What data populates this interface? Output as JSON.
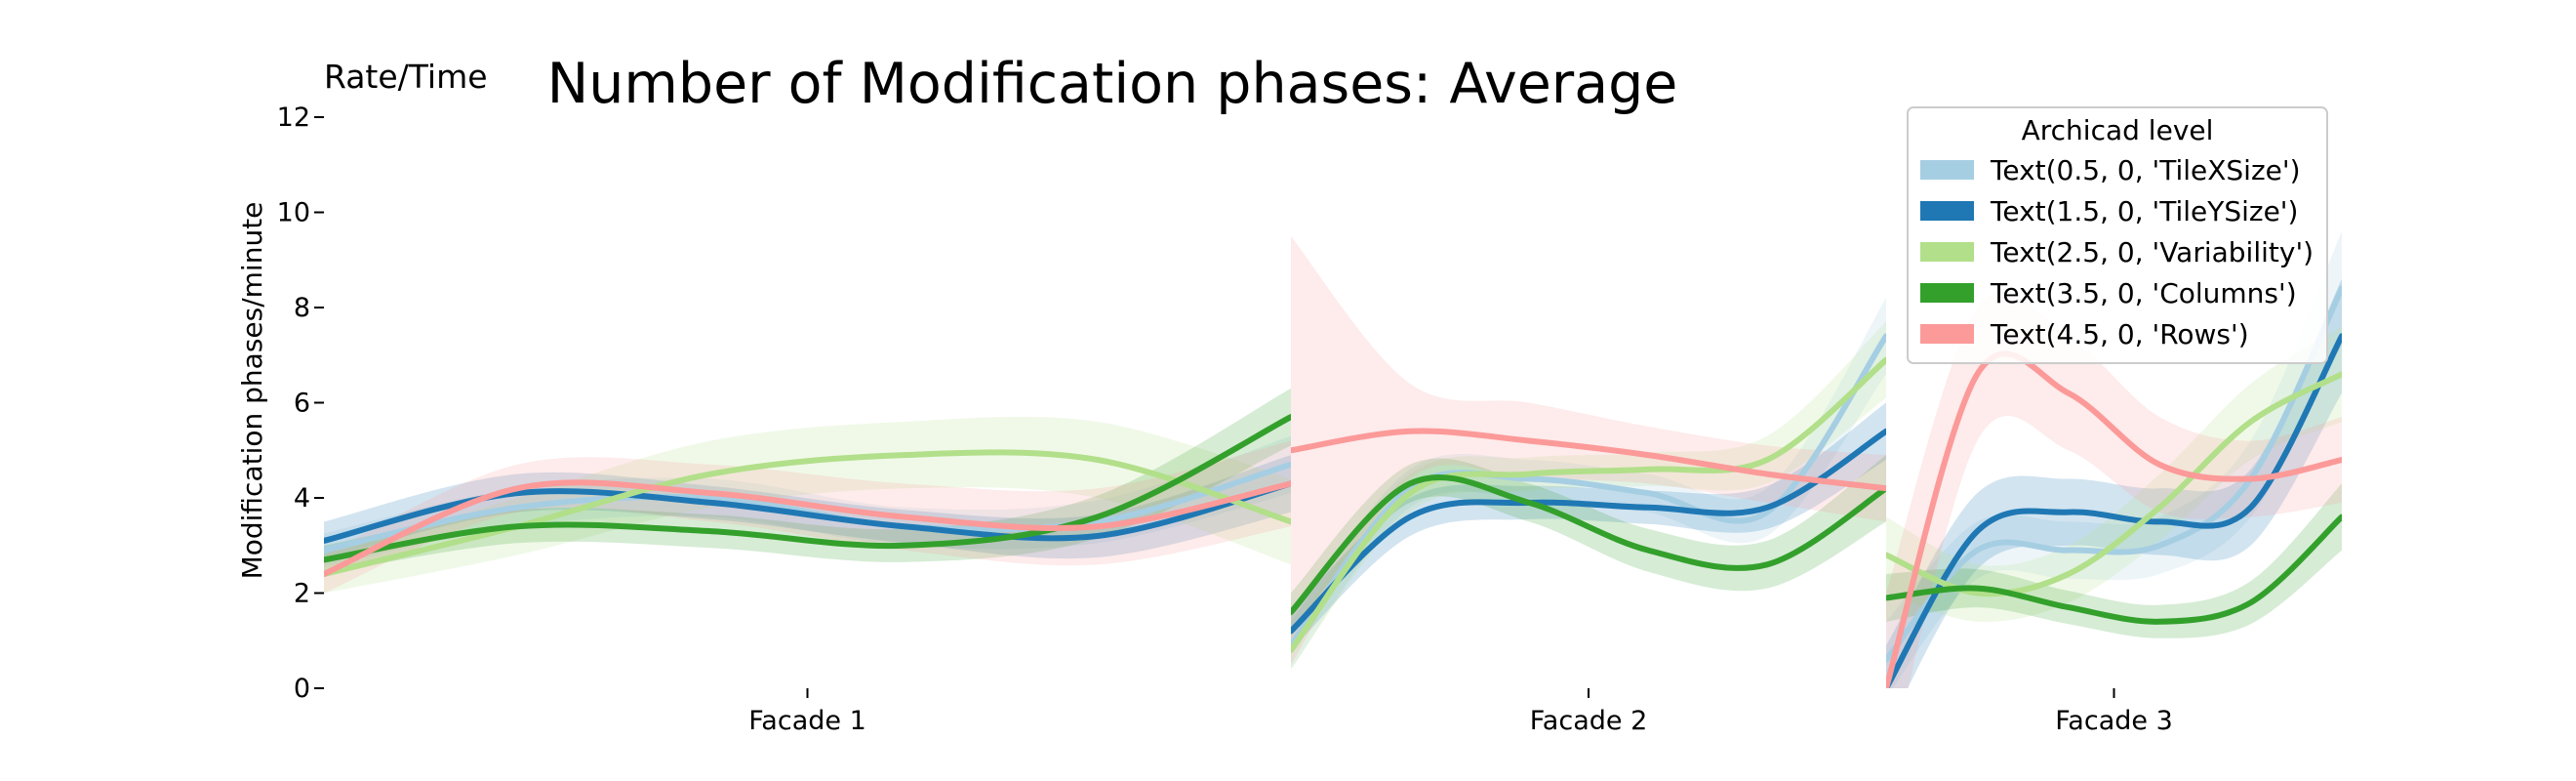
{
  "chart_data": {
    "type": "line",
    "title": "Number of Modification phases: Average",
    "corner_label": "Rate/Time",
    "ylabel": "Modification phases/minute",
    "ylim": [
      0,
      12
    ],
    "yticks": [
      0,
      2,
      4,
      6,
      8,
      10,
      12
    ],
    "grid": false,
    "legend": {
      "title": "Archicad level",
      "placement": "top-right"
    },
    "panels": [
      {
        "label": "Facade 1",
        "xlim": [
          0,
          10
        ]
      },
      {
        "label": "Facade 2",
        "xlim": [
          0,
          10
        ]
      },
      {
        "label": "Facade 3",
        "xlim": [
          0,
          10
        ]
      }
    ],
    "series": [
      {
        "name": "Text(0.5, 0, 'TileXSize')",
        "color": "#a6cee3",
        "panels": [
          {
            "x": [
              0,
              2,
              4,
              6,
              8,
              10
            ],
            "y": [
              2.9,
              3.8,
              4.0,
              3.4,
              3.5,
              4.7
            ],
            "band": [
              0.35,
              0.4,
              0.4,
              0.4,
              0.45,
              0.6
            ]
          },
          {
            "x": [
              0,
              2,
              4,
              6,
              8,
              10
            ],
            "y": [
              0.9,
              4.2,
              4.4,
              4.1,
              3.7,
              7.4
            ],
            "band": [
              0.5,
              0.4,
              0.4,
              0.4,
              0.5,
              0.8
            ]
          },
          {
            "x": [
              0,
              2,
              4,
              6,
              8,
              10
            ],
            "y": [
              0.6,
              2.9,
              2.9,
              3.0,
              4.4,
              8.4
            ],
            "band": [
              0.8,
              0.6,
              0.6,
              0.6,
              0.8,
              1.2
            ]
          }
        ]
      },
      {
        "name": "Text(1.5, 0, 'TileYSize')",
        "color": "#1f78b4",
        "panels": [
          {
            "x": [
              0,
              2,
              4,
              6,
              8,
              10
            ],
            "y": [
              3.1,
              4.1,
              3.9,
              3.4,
              3.2,
              4.3
            ],
            "band": [
              0.4,
              0.4,
              0.35,
              0.35,
              0.45,
              0.6
            ]
          },
          {
            "x": [
              0,
              2,
              4,
              6,
              8,
              10
            ],
            "y": [
              1.2,
              3.6,
              3.9,
              3.8,
              3.8,
              5.4
            ],
            "band": [
              0.4,
              0.4,
              0.35,
              0.35,
              0.45,
              0.6
            ]
          },
          {
            "x": [
              0,
              2,
              4,
              6,
              8,
              10
            ],
            "y": [
              0.0,
              3.3,
              3.7,
              3.5,
              3.8,
              7.4
            ],
            "band": [
              0.9,
              0.8,
              0.7,
              0.7,
              0.8,
              1.2
            ]
          }
        ]
      },
      {
        "name": "Text(2.5, 0, 'Variability')",
        "color": "#b2df8a",
        "panels": [
          {
            "x": [
              0,
              2,
              4,
              6,
              8,
              10
            ],
            "y": [
              2.4,
              3.4,
              4.5,
              4.9,
              4.8,
              3.5
            ],
            "band": [
              0.4,
              0.6,
              0.7,
              0.7,
              0.8,
              0.9
            ]
          },
          {
            "x": [
              0,
              2,
              4,
              6,
              8,
              10
            ],
            "y": [
              0.8,
              4.1,
              4.5,
              4.6,
              4.8,
              6.9
            ],
            "band": [
              0.4,
              0.4,
              0.35,
              0.35,
              0.5,
              0.8
            ]
          },
          {
            "x": [
              0,
              2,
              4,
              6,
              8,
              10
            ],
            "y": [
              2.8,
              2.0,
              2.4,
              3.8,
              5.6,
              6.6
            ],
            "band": [
              0.8,
              0.6,
              0.6,
              0.7,
              0.8,
              1.0
            ]
          }
        ]
      },
      {
        "name": "Text(3.5, 0, 'Columns')",
        "color": "#33a02c",
        "panels": [
          {
            "x": [
              0,
              2,
              4,
              6,
              8,
              10
            ],
            "y": [
              2.7,
              3.4,
              3.3,
              3.0,
              3.6,
              5.7
            ],
            "band": [
              0.3,
              0.35,
              0.35,
              0.35,
              0.45,
              0.6
            ]
          },
          {
            "x": [
              0,
              2,
              4,
              6,
              8,
              10
            ],
            "y": [
              1.6,
              4.3,
              3.9,
              2.9,
              2.6,
              4.2
            ],
            "band": [
              0.4,
              0.4,
              0.4,
              0.45,
              0.5,
              0.7
            ]
          },
          {
            "x": [
              0,
              2,
              4,
              6,
              8,
              10
            ],
            "y": [
              1.9,
              2.1,
              1.7,
              1.4,
              1.8,
              3.6
            ],
            "band": [
              0.5,
              0.4,
              0.35,
              0.35,
              0.45,
              0.7
            ]
          }
        ]
      },
      {
        "name": "Text(4.5, 0, 'Rows')",
        "color": "#fb9a99",
        "panels": [
          {
            "x": [
              0,
              2,
              4,
              6,
              8,
              10
            ],
            "y": [
              2.4,
              4.2,
              4.1,
              3.6,
              3.4,
              4.3
            ],
            "band": [
              0.4,
              0.5,
              0.6,
              0.7,
              0.8,
              0.9
            ]
          },
          {
            "x": [
              0,
              2,
              4,
              6,
              8,
              10
            ],
            "y": [
              5.0,
              5.4,
              5.2,
              4.9,
              4.5,
              4.2
            ],
            "band": [
              4.5,
              1.0,
              0.8,
              0.6,
              0.6,
              0.7
            ]
          },
          {
            "x": [
              0,
              2,
              4,
              6,
              8,
              10
            ],
            "y": [
              0.0,
              6.6,
              6.2,
              4.7,
              4.4,
              4.8
            ],
            "band": [
              2.0,
              1.4,
              1.2,
              1.0,
              0.8,
              0.9
            ]
          }
        ]
      }
    ]
  }
}
